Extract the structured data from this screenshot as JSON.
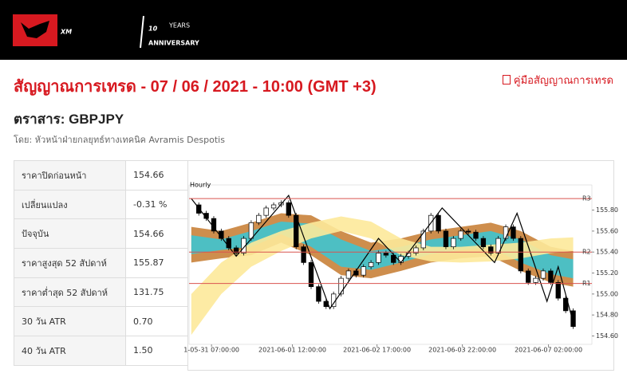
{
  "header": {
    "logo": "XM",
    "badge": "10",
    "badge_sub": "YEARS",
    "badge_sub2": "ANNIVERSARY"
  },
  "title": "สัญญาณการเทรด - 07 / 06 / 2021 - 10:00 (GMT +3)",
  "guide_link": "คู่มือสัญญาณการเทรด",
  "instrument": "ตราสาร: GBPJPY",
  "author": "โดย: หัวหน้าฝ่ายกลยุทธ์ทางเทคนิค Avramis Despotis",
  "table": {
    "rows": [
      [
        "ราคาปิดก่อนหน้า",
        "154.66"
      ],
      [
        "เปลี่ยนแปลง",
        "-0.31 %"
      ],
      [
        "ปัจจุบัน",
        "154.66"
      ],
      [
        "ราคาสูงสุด 52 สัปดาห์",
        "155.87"
      ],
      [
        "ราคาต่ำสุด 52 สัปดาห์",
        "131.75"
      ],
      [
        "30 วัน ATR",
        "0.70"
      ],
      [
        "40 วัน ATR",
        "1.50"
      ]
    ]
  },
  "chart_data": {
    "type": "candlestick",
    "title": "Hourly",
    "values": [
      155.85,
      155.77,
      155.72,
      155.6,
      155.53,
      155.44,
      155.39,
      155.53,
      155.68,
      155.75,
      155.82,
      155.85,
      155.87,
      155.75,
      155.45,
      155.3,
      155.07,
      154.93,
      154.88,
      155.0,
      155.15,
      155.22,
      155.18,
      155.26,
      155.3,
      155.39,
      155.37,
      155.3,
      155.36,
      155.39,
      155.44,
      155.6,
      155.75,
      155.6,
      155.45,
      155.53,
      155.6,
      155.59,
      155.53,
      155.45,
      155.39,
      155.53,
      155.64,
      155.53,
      155.22,
      155.11,
      155.15,
      155.22,
      155.11,
      154.96,
      154.84,
      154.69
    ],
    "xlim": [
      -0.3,
      53.5
    ],
    "xticks": [
      {
        "value": 2.7,
        "label": "1-05-31 07:00:00"
      },
      {
        "value": 13.5,
        "label": "2021-06-01 12:00:00"
      },
      {
        "value": 24.8,
        "label": "2021-06-02 17:00:00"
      },
      {
        "value": 36.2,
        "label": "2021-06-03 22:00:00"
      },
      {
        "value": 47.7,
        "label": "2021-06-07 02:00:00"
      }
    ],
    "ylim": [
      154.52,
      156.04
    ],
    "yticks": [
      {
        "value": 155.8,
        "label": "155.80"
      },
      {
        "value": 155.6,
        "label": "155.60"
      },
      {
        "value": 155.4,
        "label": "155.40"
      },
      {
        "value": 155.2,
        "label": "155.20"
      },
      {
        "value": 155.0,
        "label": "155.00"
      },
      {
        "value": 154.8,
        "label": "154.80"
      },
      {
        "value": 154.6,
        "label": "154.60"
      }
    ],
    "bands": {
      "x": [
        0,
        4,
        8,
        12,
        16,
        20,
        24,
        28,
        32,
        36,
        40,
        44,
        48,
        51
      ],
      "series": [
        {
          "color": "#c9823a",
          "upper": [
            155.64,
            155.6,
            155.68,
            155.77,
            155.75,
            155.6,
            155.49,
            155.53,
            155.6,
            155.64,
            155.68,
            155.6,
            155.45,
            155.41
          ],
          "lower": [
            155.3,
            155.34,
            155.37,
            155.49,
            155.37,
            155.18,
            155.15,
            155.22,
            155.3,
            155.34,
            155.36,
            155.22,
            155.11,
            155.07
          ]
        },
        {
          "color": "#3fc4d0",
          "upper": [
            155.56,
            155.52,
            155.6,
            155.69,
            155.67,
            155.52,
            155.41,
            155.45,
            155.52,
            155.56,
            155.6,
            155.52,
            155.37,
            155.33
          ],
          "lower": [
            155.38,
            155.42,
            155.45,
            155.57,
            155.45,
            155.26,
            155.23,
            155.3,
            155.38,
            155.42,
            155.44,
            155.3,
            155.19,
            155.15
          ]
        },
        {
          "color": "#fde99a",
          "upper": [
            155.0,
            155.3,
            155.49,
            155.6,
            155.68,
            155.74,
            155.69,
            155.53,
            155.45,
            155.45,
            155.47,
            155.49,
            155.53,
            155.54
          ],
          "lower": [
            154.61,
            155.0,
            155.26,
            155.41,
            155.53,
            155.6,
            155.53,
            155.37,
            155.31,
            155.3,
            155.31,
            155.34,
            155.39,
            155.41
          ]
        }
      ]
    },
    "zigzag": {
      "x": [
        0,
        6,
        13,
        18.5,
        25,
        28,
        33.5,
        40.5,
        43.5,
        47.5,
        49,
        51
      ],
      "values": [
        155.91,
        155.36,
        155.94,
        154.86,
        155.53,
        155.3,
        155.82,
        155.3,
        155.77,
        154.93,
        155.26,
        154.73
      ]
    },
    "levels": [
      {
        "name": "R3",
        "value": 155.91
      },
      {
        "name": "R2",
        "value": 155.4
      },
      {
        "name": "R1",
        "value": 155.1
      }
    ],
    "level_color": "#d9534f"
  }
}
